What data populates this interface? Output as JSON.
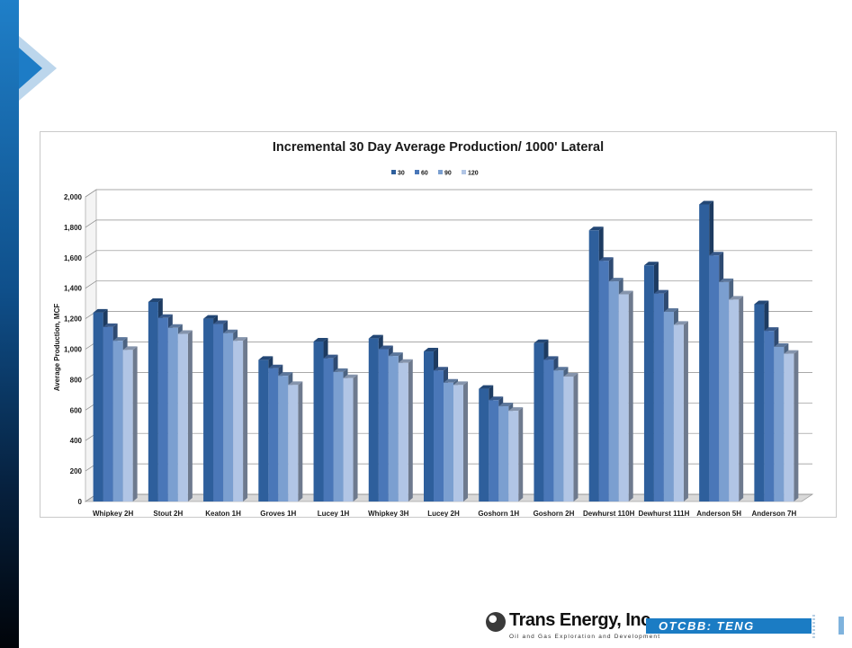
{
  "colors": {
    "accent": "#1b7cc4",
    "series": [
      "#2e5f9c",
      "#4a77b8",
      "#7b9fd0",
      "#b1c5e5"
    ]
  },
  "chart_data": {
    "type": "bar",
    "title": "Incremental 30 Day Average Production/ 1000' Lateral",
    "xlabel": "",
    "ylabel": "Average Production, MCF",
    "ylim": [
      0,
      2000
    ],
    "yticks": [
      "0",
      "200",
      "400",
      "600",
      "800",
      "1,000",
      "1,200",
      "1,400",
      "1,600",
      "1,800",
      "2,000"
    ],
    "grid": true,
    "legend_position": "top-center",
    "style": "3d-clustered",
    "categories": [
      "Whipkey 2H",
      "Stout 2H",
      "Keaton 1H",
      "Groves 1H",
      "Lucey 1H",
      "Whipkey 3H",
      "Lucey 2H",
      "Goshorn 1H",
      "Goshorn 2H",
      "Dewhurst 110H",
      "Dewhurst 111H",
      "Anderson 5H",
      "Anderson 7H"
    ],
    "series": [
      {
        "name": "30",
        "values": [
          1240,
          1310,
          1200,
          930,
          1050,
          1070,
          985,
          740,
          1040,
          1780,
          1550,
          1950,
          1295
        ]
      },
      {
        "name": "60",
        "values": [
          1145,
          1205,
          1165,
          875,
          940,
          1000,
          860,
          665,
          930,
          1580,
          1365,
          1615,
          1120
        ]
      },
      {
        "name": "90",
        "values": [
          1055,
          1140,
          1105,
          825,
          850,
          955,
          780,
          625,
          860,
          1445,
          1245,
          1440,
          1015
        ]
      },
      {
        "name": "120",
        "values": [
          995,
          1100,
          1055,
          765,
          810,
          910,
          765,
          595,
          820,
          1360,
          1160,
          1325,
          970
        ]
      }
    ]
  },
  "footer": {
    "logo_name": "Trans Energy, Inc.",
    "logo_tagline": "Oil and Gas Exploration and Development",
    "ticker": "OTCBB: TENG"
  }
}
